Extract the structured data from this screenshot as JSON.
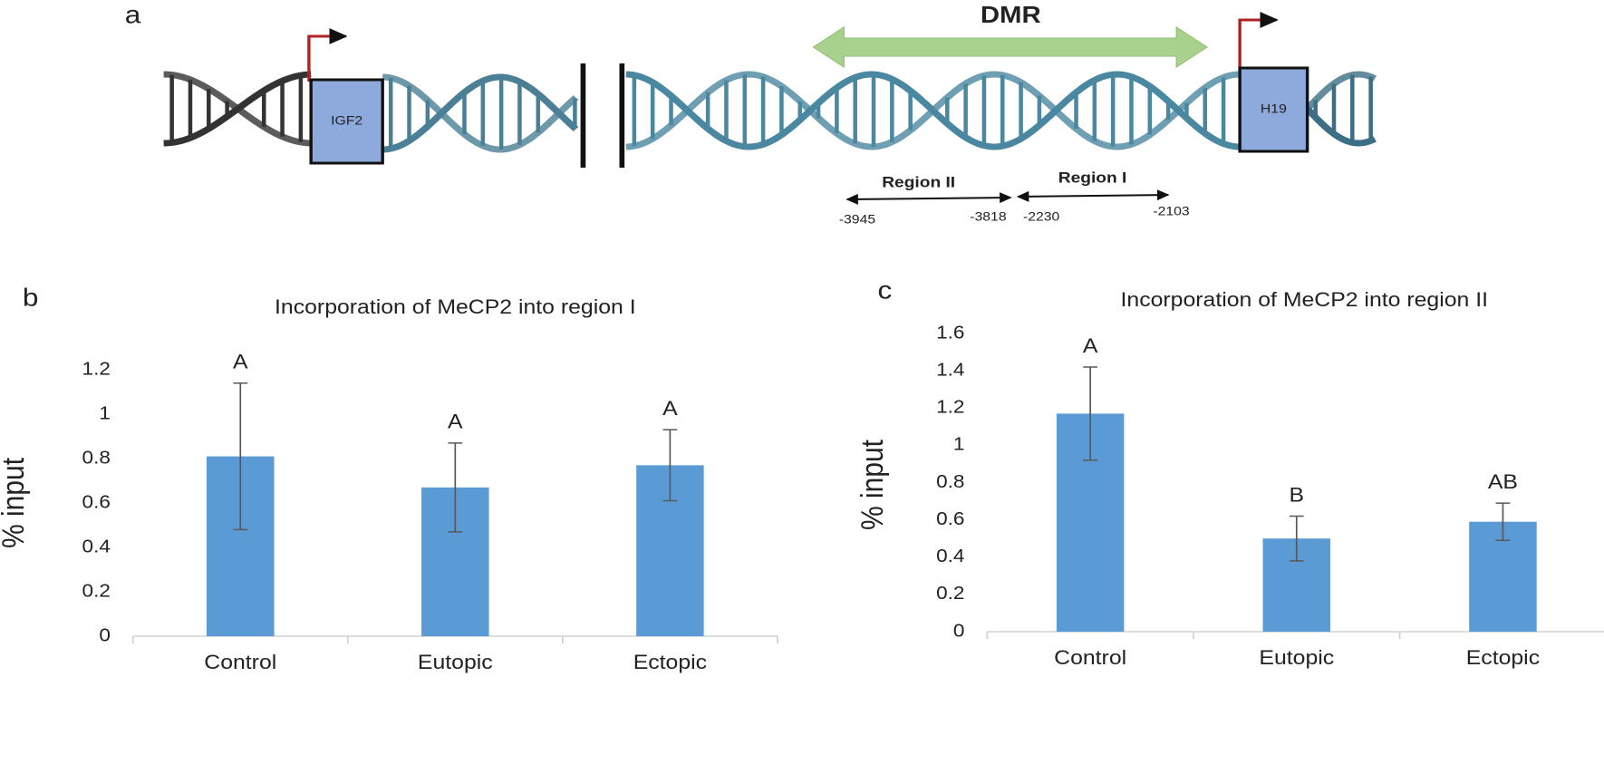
{
  "panel_labels": [
    "a",
    "b",
    "c"
  ],
  "diagram": {
    "region_label": "DMR",
    "genes": [
      "IGF2",
      "H19"
    ],
    "regions": [
      {
        "name": "Region II",
        "start": "-3945",
        "end": "-3818"
      },
      {
        "name": "Region I",
        "start": "-2230",
        "end": "-2103"
      }
    ]
  },
  "chart_data": [
    {
      "type": "bar",
      "title": "Incorporation of MeCP2 into region I",
      "ylabel": "% input",
      "categories": [
        "Control",
        "Eutopic",
        "Ectopic"
      ],
      "values": [
        0.81,
        0.67,
        0.77
      ],
      "errors": [
        0.33,
        0.2,
        0.16
      ],
      "annotations": [
        "A",
        "A",
        "A"
      ],
      "color": "#5b9bd5",
      "ylim": [
        0,
        1.2
      ],
      "yticks": [
        0,
        0.2,
        0.4,
        0.6,
        0.8,
        1,
        1.2
      ],
      "grid": false
    },
    {
      "type": "bar",
      "title": "Incorporation of MeCP2 into region II",
      "ylabel": "% input",
      "categories": [
        "Control",
        "Eutopic",
        "Ectopic"
      ],
      "values": [
        1.17,
        0.5,
        0.59
      ],
      "errors": [
        0.25,
        0.12,
        0.1
      ],
      "annotations": [
        "A",
        "B",
        "AB"
      ],
      "color": "#5b9bd5",
      "ylim": [
        0,
        1.6
      ],
      "yticks": [
        0,
        0.2,
        0.4,
        0.6,
        0.8,
        1,
        1.2,
        1.4,
        1.6
      ],
      "grid": false
    }
  ]
}
